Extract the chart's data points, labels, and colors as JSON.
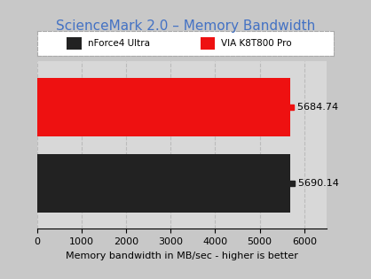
{
  "title": "ScienceMark 2.0 – Memory Bandwidth",
  "title_color": "#4472c4",
  "xlabel": "Memory bandwidth in MB/sec - higher is better",
  "xlim": [
    0,
    6500
  ],
  "xticks": [
    0,
    1000,
    2000,
    3000,
    4000,
    5000,
    6000
  ],
  "bars": [
    {
      "label": "VIA K8T800 Pro",
      "value": 5684.74,
      "color": "#ee1111",
      "y": 1
    },
    {
      "label": "nForce4 Ultra",
      "value": 5690.14,
      "color": "#222222",
      "y": 0
    }
  ],
  "bar_height": 0.35,
  "legend_items": [
    {
      "label": "nForce4 Ultra",
      "color": "#222222"
    },
    {
      "label": "VIA K8T800 Pro",
      "color": "#ee1111"
    }
  ],
  "background_outer": "#c8c8c8",
  "background_inner": "#d8d8d8",
  "grid_color": "#bbbbbb",
  "annotation_fontsize": 8,
  "label_fontsize": 8,
  "title_fontsize": 11
}
